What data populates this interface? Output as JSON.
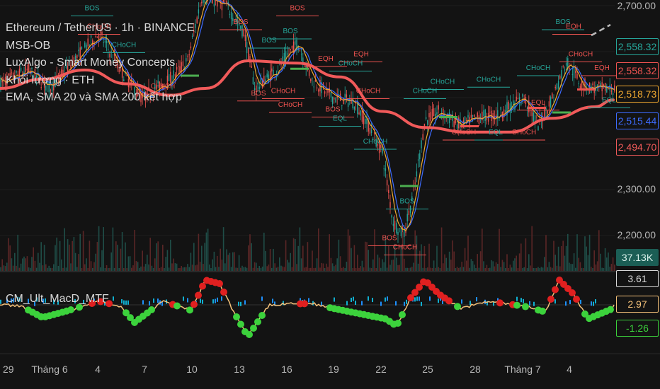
{
  "legend": {
    "symbol": "Ethereum / TetherUS · 1h · BINANCE",
    "ind1": "MSB-OB",
    "ind2": "LuxAlgo - Smart Money Concepts",
    "ind3": "Khối lượng · ETH",
    "ind4": "EMA, SMA 20 và SMA 200 kết hợp",
    "macd": "CM_Ult_MacD_MTF"
  },
  "price_axis": [
    "2,700.00",
    "2,300.00",
    "2,200.00"
  ],
  "price_tags": [
    {
      "value": "2,558.32",
      "color": "#26a69a",
      "bg": "#131313",
      "border": "#26a69a"
    },
    {
      "value": "2,558.32",
      "color": "#ef5350",
      "bg": "#131313",
      "border": "#ef5350"
    },
    {
      "value": "2,518.73",
      "color": "#f0a830",
      "bg": "#131313",
      "border": "#f0a830"
    },
    {
      "value": "2,515.44",
      "color": "#3d6bff",
      "bg": "#131313",
      "border": "#3d6bff"
    },
    {
      "value": "2,494.70",
      "color": "#f05a5a",
      "bg": "#131313",
      "border": "#f05a5a"
    }
  ],
  "volume_tag": "37.13K",
  "macd_tags": [
    {
      "value": "3.61",
      "color": "#d8d8d8",
      "bg": "#131313",
      "border": "#d8d8d8"
    },
    {
      "value": "2.97",
      "color": "#f5c27a",
      "bg": "#131313",
      "border": "#f5c27a"
    },
    {
      "value": "-1.26",
      "color": "#3cd23c",
      "bg": "#131313",
      "border": "#3cd23c"
    }
  ],
  "x_axis": [
    "29",
    "Tháng 6",
    "4",
    "7",
    "10",
    "13",
    "16",
    "19",
    "22",
    "25",
    "28",
    "Tháng 7",
    "4"
  ],
  "smc_labels": [
    "BOS",
    "CHoCH",
    "EQH",
    "EQL"
  ],
  "chart_data": {
    "type": "line",
    "title": "Ethereum / TetherUS · 1h · BINANCE",
    "x": [
      "29",
      "Tháng 6",
      "4",
      "7",
      "10",
      "13",
      "16",
      "19",
      "22",
      "25",
      "28",
      "Tháng 7",
      "4"
    ],
    "series": [
      {
        "name": "Ethereum / TetherUS",
        "values": [
          2530,
          2545,
          2600,
          2490,
          2720,
          2560,
          2600,
          2480,
          2250,
          2470,
          2440,
          2480,
          2518
        ]
      }
    ],
    "ylim": [
      2150,
      2720
    ],
    "y_ticks": [
      2700,
      2300,
      2200
    ]
  },
  "colors": {
    "bull": "#26a69a",
    "bear": "#ef5350",
    "sma200": "#f05a5a",
    "ema": "#f0a830",
    "sma20": "#3d6bff",
    "macd_up": "#3cd23c",
    "macd_down": "#e02020"
  }
}
